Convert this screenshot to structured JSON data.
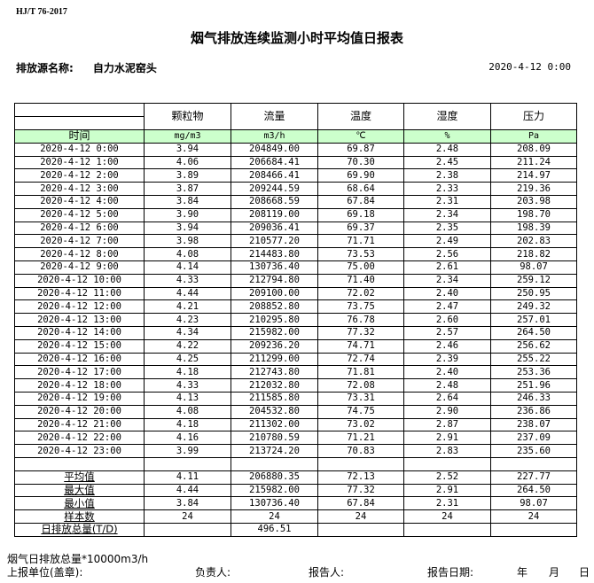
{
  "standard": "HJ/T  76-2017",
  "title": "烟气排放连续监测小时平均值日报表",
  "source_label": "排放源名称:",
  "source_name": "自力水泥窑头",
  "report_datetime": "2020-4-12 0:00",
  "columns": [
    {
      "name": "颗粒物",
      "unit": "mg/m3"
    },
    {
      "name": "流量",
      "unit": "m3/h"
    },
    {
      "name": "温度",
      "unit": "℃"
    },
    {
      "name": "湿度",
      "unit": "%"
    },
    {
      "name": "压力",
      "unit": "Pa"
    }
  ],
  "time_label": "时间",
  "rows": [
    [
      "2020-4-12 0:00",
      "3.94",
      "204849.00",
      "69.87",
      "2.48",
      "208.09"
    ],
    [
      "2020-4-12 1:00",
      "4.06",
      "206684.41",
      "70.30",
      "2.45",
      "211.24"
    ],
    [
      "2020-4-12 2:00",
      "3.89",
      "208466.41",
      "69.90",
      "2.38",
      "214.97"
    ],
    [
      "2020-4-12 3:00",
      "3.87",
      "209244.59",
      "68.64",
      "2.33",
      "219.36"
    ],
    [
      "2020-4-12 4:00",
      "3.84",
      "208668.59",
      "67.84",
      "2.31",
      "203.98"
    ],
    [
      "2020-4-12 5:00",
      "3.90",
      "208119.00",
      "69.18",
      "2.34",
      "198.70"
    ],
    [
      "2020-4-12 6:00",
      "3.94",
      "209036.41",
      "69.37",
      "2.35",
      "198.39"
    ],
    [
      "2020-4-12 7:00",
      "3.98",
      "210577.20",
      "71.71",
      "2.49",
      "202.83"
    ],
    [
      "2020-4-12 8:00",
      "4.08",
      "214483.80",
      "73.53",
      "2.56",
      "218.82"
    ],
    [
      "2020-4-12 9:00",
      "4.14",
      "130736.40",
      "75.00",
      "2.61",
      "98.07"
    ],
    [
      "2020-4-12 10:00",
      "4.33",
      "212794.80",
      "71.40",
      "2.34",
      "259.12"
    ],
    [
      "2020-4-12 11:00",
      "4.44",
      "209100.00",
      "72.02",
      "2.40",
      "250.95"
    ],
    [
      "2020-4-12 12:00",
      "4.21",
      "208852.80",
      "73.75",
      "2.47",
      "249.32"
    ],
    [
      "2020-4-12 13:00",
      "4.23",
      "210295.80",
      "76.78",
      "2.60",
      "257.01"
    ],
    [
      "2020-4-12 14:00",
      "4.34",
      "215982.00",
      "77.32",
      "2.57",
      "264.50"
    ],
    [
      "2020-4-12 15:00",
      "4.22",
      "209236.20",
      "74.71",
      "2.46",
      "256.62"
    ],
    [
      "2020-4-12 16:00",
      "4.25",
      "211299.00",
      "72.74",
      "2.39",
      "255.22"
    ],
    [
      "2020-4-12 17:00",
      "4.18",
      "212743.80",
      "71.81",
      "2.40",
      "253.36"
    ],
    [
      "2020-4-12 18:00",
      "4.33",
      "212032.80",
      "72.08",
      "2.48",
      "251.96"
    ],
    [
      "2020-4-12 19:00",
      "4.13",
      "211585.80",
      "73.31",
      "2.64",
      "246.33"
    ],
    [
      "2020-4-12 20:00",
      "4.08",
      "204532.80",
      "74.75",
      "2.90",
      "236.86"
    ],
    [
      "2020-4-12 21:00",
      "4.18",
      "211302.00",
      "73.02",
      "2.87",
      "238.07"
    ],
    [
      "2020-4-12 22:00",
      "4.16",
      "210780.59",
      "71.21",
      "2.91",
      "237.09"
    ],
    [
      "2020-4-12 23:00",
      "3.99",
      "213724.20",
      "70.83",
      "2.83",
      "235.60"
    ]
  ],
  "summary": [
    [
      "平均值",
      "4.11",
      "206880.35",
      "72.13",
      "2.52",
      "227.77"
    ],
    [
      "最大值",
      "4.44",
      "215982.00",
      "77.32",
      "2.91",
      "264.50"
    ],
    [
      "最小值",
      "3.84",
      "130736.40",
      "67.84",
      "2.31",
      "98.07"
    ],
    [
      "样本数",
      "24",
      "24",
      "24",
      "24",
      "24"
    ],
    [
      "日排放总量(T/D)",
      "",
      "496.51",
      "",
      "",
      ""
    ]
  ],
  "footer": {
    "note": "烟气日排放总量*10000m3/h",
    "unit_label": "上报单位(盖章):",
    "responsible_label": "负责人:",
    "reporter_label": "报告人:",
    "report_date_label": "报告日期:",
    "year": "年",
    "month": "月",
    "day": "日"
  }
}
